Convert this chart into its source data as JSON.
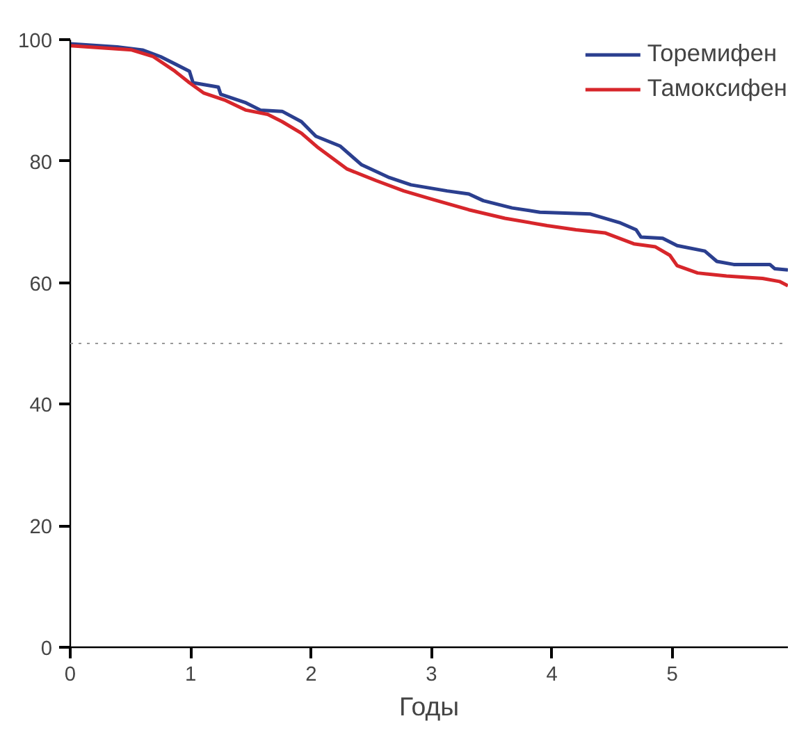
{
  "chart_data": {
    "type": "line",
    "xlabel": "Годы",
    "xlim": [
      0,
      5.96
    ],
    "ylim": [
      0,
      100
    ],
    "xticks": [
      0,
      1,
      2,
      3,
      4,
      5
    ],
    "yticks": [
      0,
      20,
      40,
      60,
      80,
      100
    ],
    "legend": "top right",
    "grid": false,
    "line_style": "solid",
    "ref_lines": [
      {
        "axis": "y",
        "value": 50,
        "color": "#999999",
        "line_style": "dotted"
      }
    ],
    "series": [
      {
        "name": "Торемифен",
        "color": "#2b3f8f",
        "x": [
          0,
          0.39,
          0.6,
          0.75,
          0.99,
          1.02,
          1.23,
          1.25,
          1.46,
          1.58,
          1.76,
          1.92,
          2.04,
          2.24,
          2.42,
          2.65,
          2.83,
          3.13,
          3.31,
          3.43,
          3.67,
          3.9,
          4.32,
          4.56,
          4.7,
          4.74,
          4.92,
          5.04,
          5.27,
          5.37,
          5.51,
          5.81,
          5.85,
          5.96
        ],
        "values": [
          99.3,
          98.8,
          98.3,
          97.2,
          94.8,
          92.9,
          92.2,
          91,
          89.6,
          88.4,
          88.2,
          86.5,
          84.1,
          82.5,
          79.4,
          77.3,
          76.1,
          75.1,
          74.6,
          73.5,
          72.3,
          71.6,
          71.3,
          69.9,
          68.7,
          67.5,
          67.3,
          66.1,
          65.2,
          63.5,
          63,
          63,
          62.3,
          62.1
        ]
      },
      {
        "name": "Тамоксифен",
        "color": "#d7262b",
        "x": [
          0,
          0.51,
          0.69,
          0.87,
          0.99,
          1.11,
          1.29,
          1.46,
          1.64,
          1.76,
          1.92,
          2.06,
          2.3,
          2.54,
          2.77,
          3.01,
          3.31,
          3.61,
          3.96,
          4.2,
          4.44,
          4.68,
          4.86,
          4.98,
          5.04,
          5.21,
          5.45,
          5.75,
          5.89,
          5.96
        ],
        "values": [
          99,
          98.3,
          97.2,
          94.8,
          92.9,
          91.2,
          90,
          88.4,
          87.7,
          86.5,
          84.6,
          82.2,
          78.7,
          76.8,
          75.1,
          73.7,
          72,
          70.6,
          69.4,
          68.7,
          68.2,
          66.4,
          65.9,
          64.5,
          62.8,
          61.6,
          61.1,
          60.7,
          60.2,
          59.5
        ]
      }
    ]
  }
}
